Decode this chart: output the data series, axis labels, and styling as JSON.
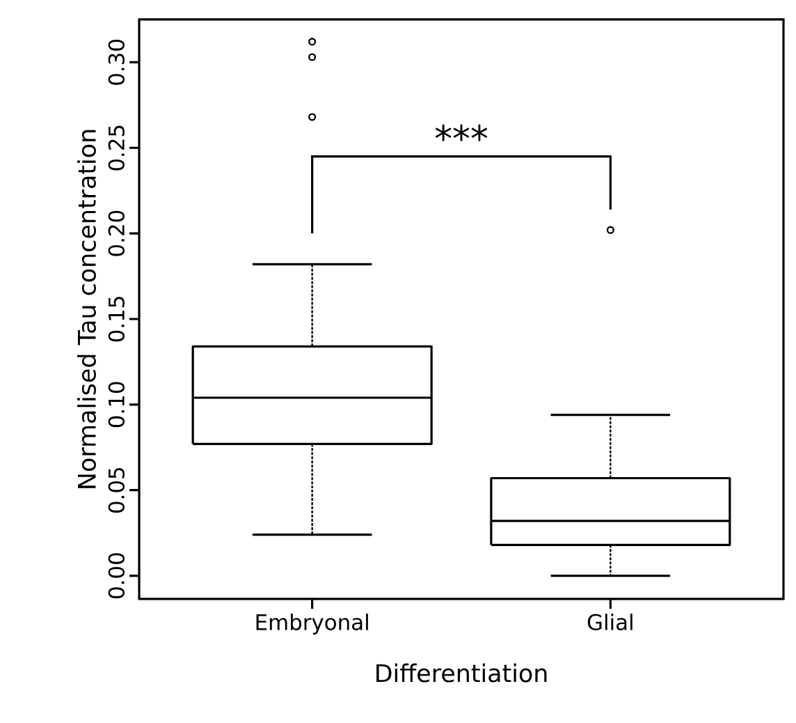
{
  "chart_data": {
    "type": "box",
    "xlabel": "Differentiation",
    "ylabel": "Normalised Tau concentration",
    "categories": [
      "Embryonal",
      "Glial"
    ],
    "boxes": [
      {
        "low": 0.024,
        "q1": 0.077,
        "median": 0.104,
        "q3": 0.134,
        "high": 0.182,
        "outliers": [
          0.312,
          0.303,
          0.268
        ]
      },
      {
        "low": 0.0,
        "q1": 0.018,
        "median": 0.032,
        "q3": 0.057,
        "high": 0.094,
        "outliers": [
          0.202
        ]
      }
    ],
    "color": "#000000",
    "ylim": [
      -0.0136,
      0.325
    ],
    "yticks": [
      {
        "value": 0,
        "label": "0.00"
      },
      {
        "value": 0.05,
        "label": "0.05"
      },
      {
        "value": 0.1,
        "label": "0.10"
      },
      {
        "value": 0.15,
        "label": "0.15"
      },
      {
        "value": 0.2,
        "label": "0.20"
      },
      {
        "value": 0.25,
        "label": "0.25"
      },
      {
        "value": 0.3,
        "label": "0.30"
      }
    ],
    "annotations": [
      "***"
    ]
  }
}
